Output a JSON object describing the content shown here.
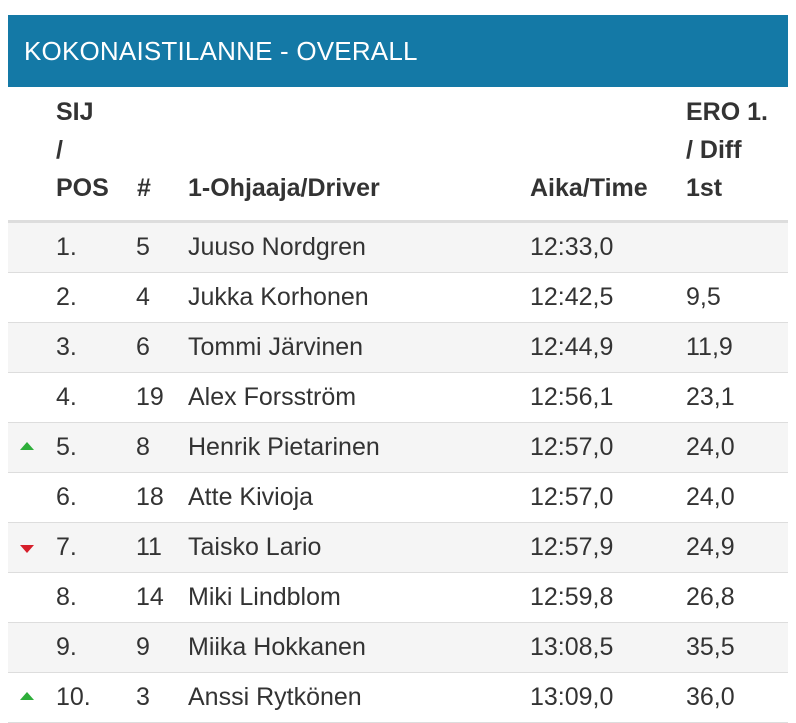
{
  "header": {
    "title": "KOKONAISTILANNE - OVERALL"
  },
  "columns": {
    "pos": [
      "SIJ",
      "/",
      "POS"
    ],
    "num": "#",
    "driver": "1-Ohjaaja/Driver",
    "time": "Aika/Time",
    "diff": [
      "ERO 1.",
      "/ Diff",
      "1st"
    ]
  },
  "colors": {
    "header_bg": "#1479a6",
    "trend_up": "#2eae3a",
    "trend_down": "#d61f2b"
  },
  "rows": [
    {
      "pos": "1.",
      "num": "5",
      "driver": "Juuso Nordgren",
      "time": "12:33,0",
      "diff": "",
      "trend": "none"
    },
    {
      "pos": "2.",
      "num": "4",
      "driver": "Jukka Korhonen",
      "time": "12:42,5",
      "diff": "9,5",
      "trend": "none"
    },
    {
      "pos": "3.",
      "num": "6",
      "driver": "Tommi Järvinen",
      "time": "12:44,9",
      "diff": "11,9",
      "trend": "none"
    },
    {
      "pos": "4.",
      "num": "19",
      "driver": "Alex Forsström",
      "time": "12:56,1",
      "diff": "23,1",
      "trend": "none"
    },
    {
      "pos": "5.",
      "num": "8",
      "driver": "Henrik Pietarinen",
      "time": "12:57,0",
      "diff": "24,0",
      "trend": "up"
    },
    {
      "pos": "6.",
      "num": "18",
      "driver": "Atte Kivioja",
      "time": "12:57,0",
      "diff": "24,0",
      "trend": "none"
    },
    {
      "pos": "7.",
      "num": "11",
      "driver": "Taisko Lario",
      "time": "12:57,9",
      "diff": "24,9",
      "trend": "down"
    },
    {
      "pos": "8.",
      "num": "14",
      "driver": "Miki Lindblom",
      "time": "12:59,8",
      "diff": "26,8",
      "trend": "none"
    },
    {
      "pos": "9.",
      "num": "9",
      "driver": "Miika Hokkanen",
      "time": "13:08,5",
      "diff": "35,5",
      "trend": "none"
    },
    {
      "pos": "10.",
      "num": "3",
      "driver": "Anssi Rytkönen",
      "time": "13:09,0",
      "diff": "36,0",
      "trend": "up"
    }
  ]
}
